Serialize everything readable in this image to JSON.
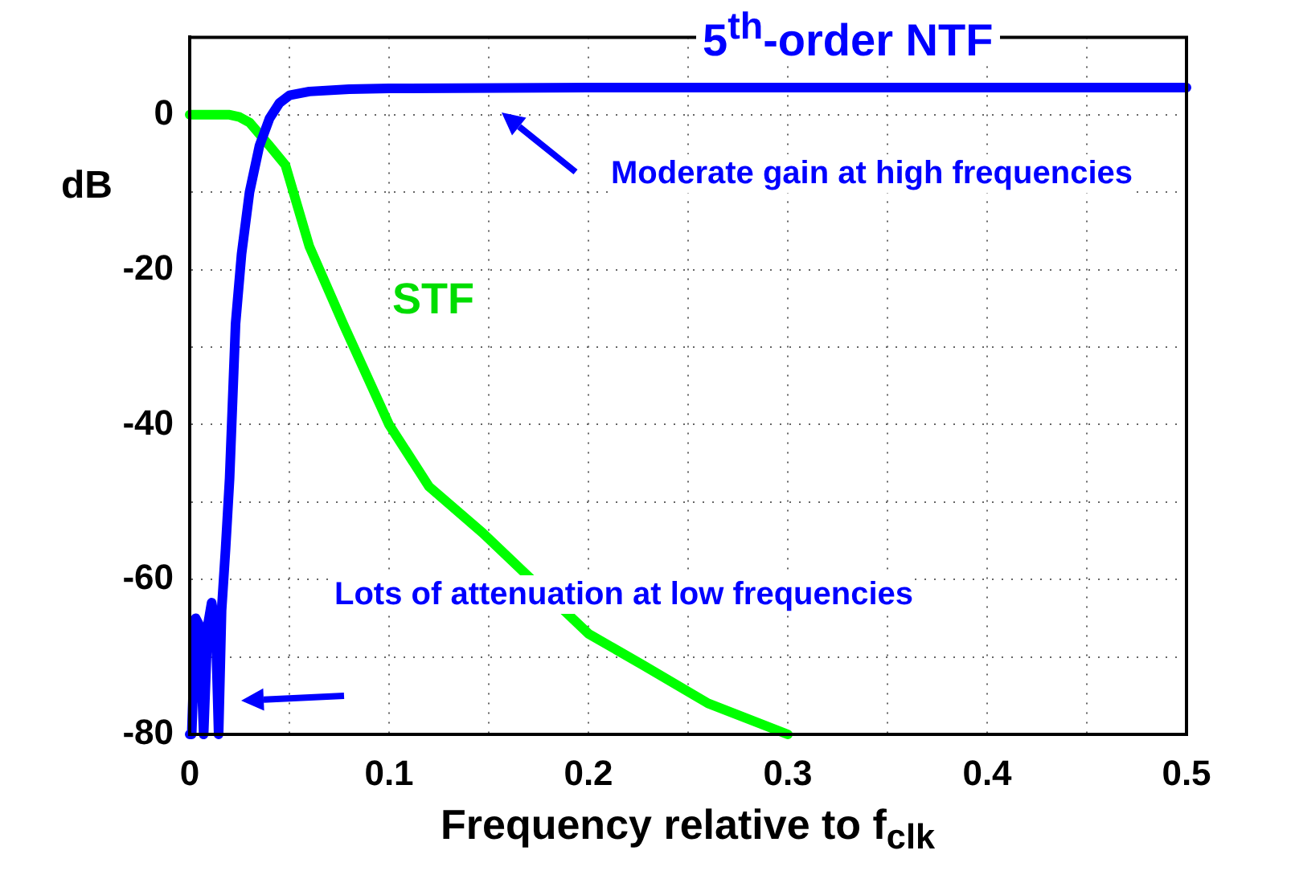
{
  "chart_data": {
    "type": "line",
    "xlabel": "Frequency relative to f$_{clk}$",
    "ylabel": "dB",
    "xlim": [
      0,
      0.5
    ],
    "ylim": [
      -80,
      10
    ],
    "xticks": [
      0,
      {
        "value": 0.05,
        "label": null
      },
      0.1,
      {
        "value": 0.15,
        "label": null
      },
      0.2,
      {
        "value": 0.25,
        "label": null
      },
      0.3,
      {
        "value": 0.35,
        "label": null
      },
      0.4,
      {
        "value": 0.45,
        "label": null
      },
      0.5
    ],
    "yticks": [
      -80,
      {
        "value": -70,
        "label": null
      },
      -60,
      {
        "value": -50,
        "label": null
      },
      -40,
      {
        "value": -30,
        "label": null
      },
      -20,
      {
        "value": -10,
        "label": null
      },
      0
    ],
    "grid": true,
    "legend": false,
    "marker": "none",
    "line_style": "solid",
    "series": [
      {
        "name": "5$^{th}$-order NTF",
        "color": "#0000ff",
        "x": [
          0,
          0.001,
          0.003,
          0.005,
          0.007,
          0.009,
          0.011,
          0.013,
          0.0145,
          0.016,
          0.018,
          0.02,
          0.023,
          0.026,
          0.03,
          0.035,
          0.04,
          0.045,
          0.05,
          0.06,
          0.08,
          0.1,
          0.2,
          0.3,
          0.4,
          0.5
        ],
        "values": [
          -80,
          -80,
          -65,
          -66,
          -80,
          -66,
          -63,
          -66,
          -80,
          -64,
          -56,
          -47,
          -27,
          -18,
          -10,
          -4,
          -0.5,
          1.5,
          2.5,
          3,
          3.3,
          3.4,
          3.5,
          3.5,
          3.5,
          3.5
        ]
      },
      {
        "name": "STF",
        "color": "#00ff00",
        "x": [
          0,
          0.01,
          0.02,
          0.025,
          0.03,
          0.035,
          0.04,
          0.048,
          0.06,
          0.077,
          0.1,
          0.12,
          0.147,
          0.2,
          0.227,
          0.26,
          0.3
        ],
        "values": [
          0,
          0,
          0,
          -0.3,
          -1,
          -2.5,
          -4,
          -6.5,
          -17,
          -27,
          -40,
          -48,
          -54,
          -67,
          -71,
          -76,
          -80
        ]
      }
    ],
    "annotations": [
      "Moderate gain at high frequencies",
      "Lots of attenuation at low frequencies"
    ]
  }
}
